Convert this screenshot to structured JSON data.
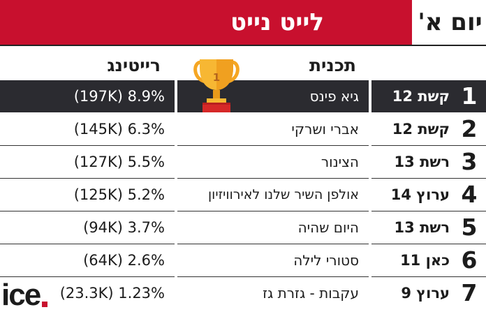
{
  "header": {
    "title": "לייט נייט",
    "day": "יום א'"
  },
  "columns": {
    "program": "תכנית",
    "rating": "רייטינג"
  },
  "rows": [
    {
      "rank": "1",
      "channel": "קשת 12",
      "program": "גיא פינס",
      "rating": "(197K) 8.9%"
    },
    {
      "rank": "2",
      "channel": "קשת 12",
      "program": "אברי ושרקי",
      "rating": "(145K) 6.3%"
    },
    {
      "rank": "3",
      "channel": "רשת 13",
      "program": "הצינור",
      "rating": "(127K) 5.5%"
    },
    {
      "rank": "4",
      "channel": "ערוץ 14",
      "program": "אולפן השיר שלנו לאירוויזיון",
      "rating": "(125K) 5.2%"
    },
    {
      "rank": "5",
      "channel": "רשת 13",
      "program": "היום שהיה",
      "rating": "(94K) 3.7%"
    },
    {
      "rank": "6",
      "channel": "כאן 11",
      "program": "סטורי לילה",
      "rating": "(64K) 2.6%"
    },
    {
      "rank": "7",
      "channel": "ערוץ 9",
      "program": "עקבות - גזרת גז",
      "rating": "(23.3K) 1.23%"
    }
  ],
  "trophy": {
    "number": "1",
    "icon": "trophy-icon"
  },
  "logo": {
    "text": "ice",
    "dot_color": "#c8102e"
  },
  "colors": {
    "accent": "#c8102e",
    "highlight_row": "#2b2b30"
  }
}
